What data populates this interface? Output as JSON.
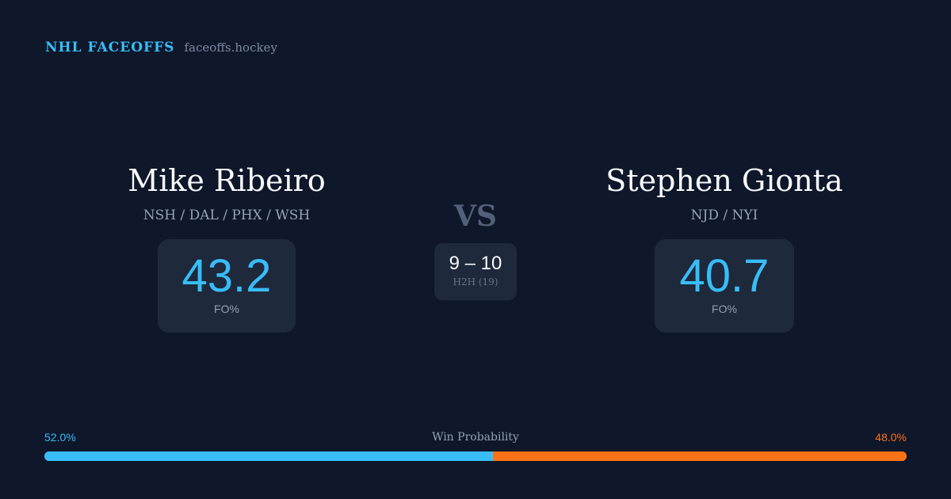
{
  "brand": {
    "title": "NHL FACEOFFS",
    "url": "faceoffs.hockey"
  },
  "left": {
    "name": "Mike Ribeiro",
    "teams": "NSH / DAL / PHX / WSH",
    "fo_pct": "43.2",
    "fo_label": "FO%",
    "win_prob": "52.0%"
  },
  "right": {
    "name": "Stephen Gionta",
    "teams": "NJD / NYI",
    "fo_pct": "40.7",
    "fo_label": "FO%",
    "win_prob": "48.0%"
  },
  "center": {
    "vs": "VS",
    "h2h_score": "9 – 10",
    "h2h_label": "H2H (19)"
  },
  "probability": {
    "label": "Win Probability",
    "left_fraction": 0.52,
    "left_color": "#38bdf8",
    "right_color": "#f97316"
  }
}
